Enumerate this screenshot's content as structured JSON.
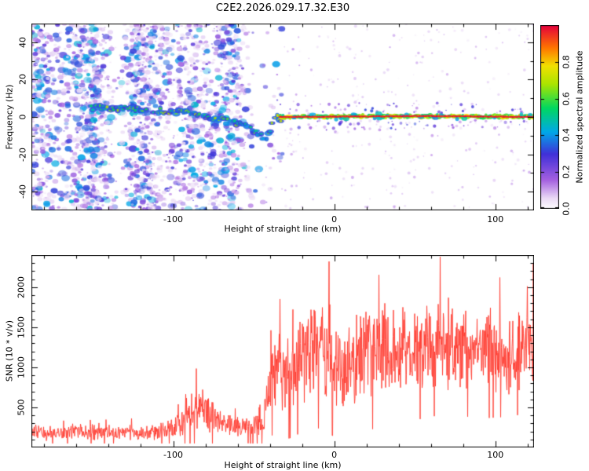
{
  "figure": {
    "title": "C2E2.2026.029.17.32.E30"
  },
  "chart_data": [
    {
      "type": "heatmap",
      "name": "frequency-spectrogram",
      "xlabel": "Height of straight line (km)",
      "ylabel": "Frequency (Hz)",
      "xlim": [
        -188,
        124
      ],
      "ylim": [
        -50,
        50
      ],
      "xticks": [
        -100,
        0,
        100
      ],
      "yticks": [
        -40,
        -20,
        0,
        20,
        40
      ],
      "colorbar": {
        "label": "Normalized spectral amplitude",
        "ticks": [
          0.0,
          0.2,
          0.4,
          0.6,
          0.8
        ],
        "range": [
          0,
          1
        ],
        "colormap_stops": [
          {
            "v": 0.0,
            "color": "#ffffff"
          },
          {
            "v": 0.06,
            "color": "#ead9f5"
          },
          {
            "v": 0.16,
            "color": "#a45fe0"
          },
          {
            "v": 0.3,
            "color": "#4030d8"
          },
          {
            "v": 0.42,
            "color": "#00a8e8"
          },
          {
            "v": 0.55,
            "color": "#00d860"
          },
          {
            "v": 0.68,
            "color": "#aae400"
          },
          {
            "v": 0.78,
            "color": "#f2e000"
          },
          {
            "v": 0.88,
            "color": "#ff7300"
          },
          {
            "v": 1.0,
            "color": "#e4003c"
          }
        ]
      },
      "noise_region": {
        "x_range": [
          -188,
          -32
        ],
        "amplitude_range": [
          0.05,
          0.45
        ]
      },
      "trace": [
        {
          "x": -152,
          "f": 5.0,
          "a": 0.55
        },
        {
          "x": -130,
          "f": 4.5,
          "a": 0.6
        },
        {
          "x": -110,
          "f": 3.5,
          "a": 0.6
        },
        {
          "x": -95,
          "f": 2.5,
          "a": 0.6
        },
        {
          "x": -80,
          "f": 0.5,
          "a": 0.6
        },
        {
          "x": -68,
          "f": -2.0,
          "a": 0.6
        },
        {
          "x": -58,
          "f": -4.0,
          "a": 0.55
        },
        {
          "x": -50,
          "f": -7.0,
          "a": 0.5
        },
        {
          "x": -44,
          "f": -12.0,
          "a": 0.5
        },
        {
          "x": -40,
          "f": -8.0,
          "a": 0.55
        },
        {
          "x": -37,
          "f": -2.0,
          "a": 0.7
        },
        {
          "x": -34,
          "f": 0.0,
          "a": 0.9
        },
        {
          "x": 0,
          "f": 0.2,
          "a": 0.95
        },
        {
          "x": 60,
          "f": 0.5,
          "a": 0.95
        },
        {
          "x": 124,
          "f": 0.0,
          "a": 0.95
        }
      ]
    },
    {
      "type": "line",
      "name": "snr-profile",
      "xlabel": "Height of straight line (km)",
      "ylabel": "SNR (10 * v/v)",
      "xlim": [
        -188,
        124
      ],
      "ylim": [
        0,
        2400
      ],
      "xticks": [
        -100,
        0,
        100
      ],
      "yticks": [
        500,
        1000,
        1500,
        2000
      ],
      "line_color": "#ff3b30",
      "envelope": [
        {
          "x": -188,
          "mean": 190,
          "noise": 110
        },
        {
          "x": -110,
          "mean": 190,
          "noise": 110
        },
        {
          "x": -100,
          "mean": 230,
          "noise": 140
        },
        {
          "x": -92,
          "mean": 380,
          "noise": 250
        },
        {
          "x": -85,
          "mean": 520,
          "noise": 330
        },
        {
          "x": -78,
          "mean": 420,
          "noise": 280
        },
        {
          "x": -70,
          "mean": 300,
          "noise": 180
        },
        {
          "x": -60,
          "mean": 260,
          "noise": 140
        },
        {
          "x": -50,
          "mean": 270,
          "noise": 160
        },
        {
          "x": -44,
          "mean": 350,
          "noise": 250
        },
        {
          "x": -40,
          "mean": 800,
          "noise": 500
        },
        {
          "x": -35,
          "mean": 1050,
          "noise": 550
        },
        {
          "x": -28,
          "mean": 950,
          "noise": 600
        },
        {
          "x": -20,
          "mean": 1100,
          "noise": 650
        },
        {
          "x": -12,
          "mean": 1250,
          "noise": 700
        },
        {
          "x": -5,
          "mean": 1150,
          "noise": 700
        },
        {
          "x": 2,
          "mean": 900,
          "noise": 550
        },
        {
          "x": 10,
          "mean": 1000,
          "noise": 650
        },
        {
          "x": 18,
          "mean": 1250,
          "noise": 750
        },
        {
          "x": 28,
          "mean": 1300,
          "noise": 750
        },
        {
          "x": 38,
          "mean": 1150,
          "noise": 600
        },
        {
          "x": 50,
          "mean": 1250,
          "noise": 650
        },
        {
          "x": 62,
          "mean": 1300,
          "noise": 650
        },
        {
          "x": 75,
          "mean": 1250,
          "noise": 600
        },
        {
          "x": 90,
          "mean": 1200,
          "noise": 600
        },
        {
          "x": 105,
          "mean": 1150,
          "noise": 550
        },
        {
          "x": 124,
          "mean": 1200,
          "noise": 550
        }
      ]
    }
  ]
}
